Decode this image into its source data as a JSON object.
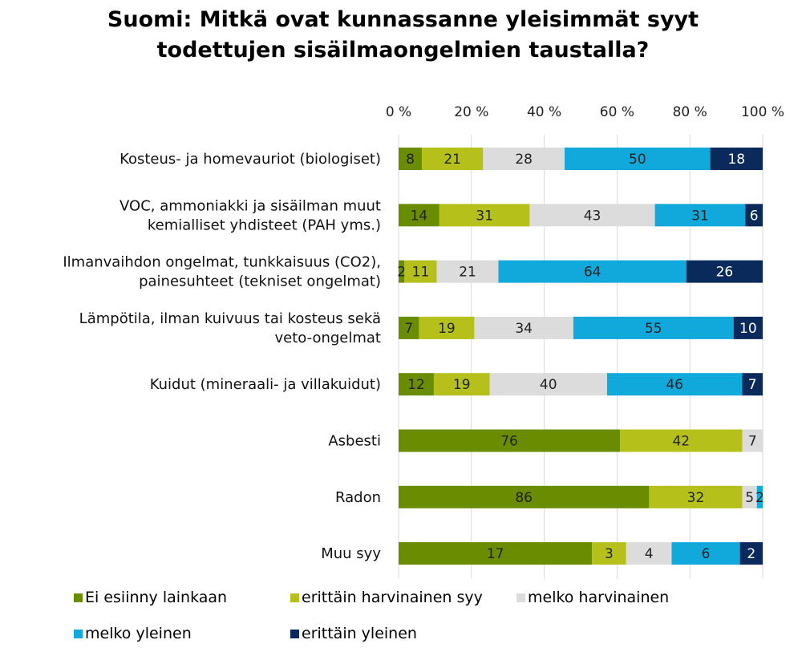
{
  "chart_data": {
    "type": "bar",
    "orientation": "horizontal",
    "stacked": "percent",
    "title_lines": [
      "Suomi: Mitkä ovat kunnassanne yleisimmät syyt",
      "todettujen sisäilmaongelmien taustalla?"
    ],
    "categories": [
      [
        "Kosteus- ja homevauriot (biologiset)"
      ],
      [
        "VOC, ammoniakki ja sisäilman muut",
        "kemialliset yhdisteet (PAH yms.)"
      ],
      [
        "Ilmanvaihdon ongelmat, tunkkaisuus (CO2),",
        "painesuhteet (tekniset ongelmat)"
      ],
      [
        "Lämpötila, ilman kuivuus tai kosteus sekä",
        "veto-ongelmat"
      ],
      [
        "Kuidut (mineraali- ja villakuidut)"
      ],
      [
        "Asbesti"
      ],
      [
        "Radon"
      ],
      [
        "Muu syy"
      ]
    ],
    "series": [
      {
        "name": "Ei esiinny lainkaan",
        "color": "#6a8c00",
        "values": [
          8,
          14,
          2,
          7,
          12,
          76,
          86,
          17
        ]
      },
      {
        "name": "erittäin harvinainen syy",
        "color": "#b5c11a",
        "values": [
          21,
          31,
          11,
          19,
          19,
          42,
          32,
          3
        ]
      },
      {
        "name": "melko harvinainen",
        "color": "#dcdcdc",
        "values": [
          28,
          43,
          21,
          34,
          40,
          7,
          5,
          4
        ]
      },
      {
        "name": "melko yleinen",
        "color": "#11a8dc",
        "values": [
          50,
          31,
          64,
          55,
          46,
          0,
          2,
          6
        ]
      },
      {
        "name": "erittäin yleinen",
        "color": "#0b2a5c",
        "values": [
          18,
          6,
          26,
          10,
          7,
          0,
          0,
          2
        ]
      }
    ],
    "x_ticks": [
      "0 %",
      "20 %",
      "40 %",
      "60 %",
      "80 %",
      "100 %"
    ],
    "xlim": [
      0,
      100
    ],
    "axis_position": "top",
    "grid": true,
    "legend": "bottom"
  }
}
